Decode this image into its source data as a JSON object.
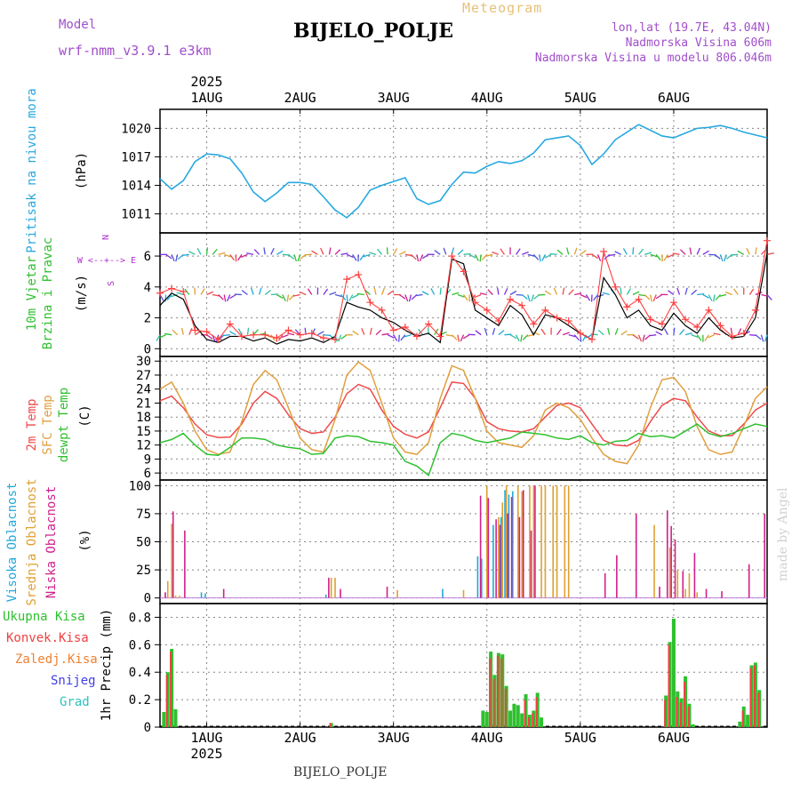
{
  "header": {
    "title": "BIJELO_POLJE",
    "subtitle": "Meteogram",
    "model_label": "Model",
    "model_name": "wrf-nmm_v3.9.1  e3km",
    "lonlat": "lon,lat (19.7E, 43.04N)",
    "elevation": "Nadmorska Visina 606m",
    "model_elevation": "Nadmorska Visina u modelu 806.046m"
  },
  "footer": {
    "station": "BIJELO_POLJE",
    "credit": "made by Angel"
  },
  "colors": {
    "pressure": "#27a9e1",
    "wind_speed": "#000000",
    "wind_gust": "#ff4040",
    "t2m": "#ef4a4a",
    "sfc": "#e0a040",
    "dewpt": "#30c030",
    "cloud_high": "#22a8d8",
    "cloud_mid": "#e0a030",
    "cloud_low": "#d0208a",
    "rain_total": "#2ec02e",
    "rain_conv": "#ef4040",
    "frz": "#f08030",
    "snow": "#4040e0",
    "hail": "#30c0c0",
    "legend_purple": "#b030d0"
  },
  "chart_data": [
    {
      "type": "line",
      "title": "Pritisak na nivou mora",
      "ylabel": "(hPa)",
      "ylim": [
        1009,
        1022
      ],
      "yticks": [
        1011,
        1014,
        1017,
        1020
      ],
      "x_unit": "hours since 2025-07-31 12UTC",
      "series": [
        {
          "name": "pressure",
          "x": [
            0,
            3,
            6,
            9,
            12,
            15,
            18,
            21,
            24,
            27,
            30,
            33,
            36,
            39,
            42,
            45,
            48,
            51,
            54,
            57,
            60,
            63,
            66,
            69,
            72,
            75,
            78,
            81,
            84,
            87,
            90,
            93,
            96,
            99,
            102,
            105,
            108,
            111,
            114,
            117,
            120,
            123,
            126,
            129,
            132,
            135,
            138,
            141,
            144,
            147,
            150,
            153,
            156
          ],
          "values": [
            1014.7,
            1013.6,
            1014.5,
            1016.5,
            1017.3,
            1017.2,
            1016.8,
            1015.3,
            1013.3,
            1012.3,
            1013.2,
            1014.3,
            1014.3,
            1014.1,
            1012.8,
            1011.4,
            1010.6,
            1011.7,
            1013.5,
            1014.0,
            1014.4,
            1014.8,
            1012.6,
            1012.0,
            1012.4,
            1014.1,
            1015.4,
            1015.3,
            1016.0,
            1016.5,
            1016.3,
            1016.6,
            1017.4,
            1018.8,
            1019.0,
            1019.2,
            1018.2,
            1016.2,
            1017.3,
            1018.8,
            1019.6,
            1020.4,
            1019.8,
            1019.2,
            1019.0,
            1019.5,
            1020.0,
            1020.1,
            1020.3,
            1020.0,
            1019.6,
            1019.3,
            1019.0
          ]
        }
      ]
    },
    {
      "type": "line",
      "title": "10m Vjetar Brzina i Pravac",
      "ylabel": "(m/s)",
      "ylim": [
        -0.5,
        7.5
      ],
      "yticks": [
        0,
        2,
        4,
        6
      ],
      "compass_legend": {
        "n": "N",
        "s": "S",
        "w": "W",
        "e": "E",
        "arrows": "<--+-->"
      },
      "series": [
        {
          "name": "wind_speed",
          "x": [
            0,
            3,
            6,
            9,
            12,
            15,
            18,
            21,
            24,
            27,
            30,
            33,
            36,
            39,
            42,
            45,
            48,
            51,
            54,
            57,
            60,
            63,
            66,
            69,
            72,
            75,
            78,
            81,
            84,
            87,
            90,
            93,
            96,
            99,
            102,
            105,
            108,
            111,
            114,
            117,
            120,
            123,
            126,
            129,
            132,
            135,
            138,
            141,
            144,
            147,
            150,
            153,
            156
          ],
          "values": [
            2.8,
            3.6,
            3.2,
            1.5,
            0.6,
            0.4,
            0.8,
            0.8,
            0.5,
            0.7,
            0.3,
            0.6,
            0.5,
            0.7,
            0.4,
            0.8,
            3.0,
            2.7,
            2.5,
            2.0,
            1.7,
            1.2,
            0.8,
            1.0,
            0.4,
            5.8,
            5.5,
            2.5,
            2.0,
            1.5,
            2.8,
            2.2,
            0.9,
            2.2,
            2.0,
            1.5,
            1.0,
            0.6,
            4.6,
            3.5,
            2.0,
            2.5,
            1.5,
            1.2,
            2.3,
            1.5,
            1.0,
            2.0,
            1.2,
            0.7,
            0.8,
            2.0,
            6.2
          ]
        },
        {
          "name": "wind_gust",
          "x": [
            0,
            3,
            6,
            9,
            12,
            15,
            18,
            21,
            24,
            27,
            30,
            33,
            36,
            39,
            42,
            45,
            48,
            51,
            54,
            57,
            60,
            63,
            66,
            69,
            72,
            75,
            78,
            81,
            84,
            87,
            90,
            93,
            96,
            99,
            102,
            105,
            108,
            111,
            114,
            117,
            120,
            123,
            126,
            129,
            132,
            135,
            138,
            141,
            144,
            147,
            150,
            153,
            156
          ],
          "values": [
            3.6,
            3.9,
            3.7,
            1.2,
            1.1,
            0.6,
            1.6,
            0.8,
            0.9,
            0.9,
            0.7,
            1.2,
            0.9,
            1.0,
            0.7,
            0.6,
            4.5,
            4.8,
            3.0,
            2.5,
            1.2,
            1.4,
            0.8,
            1.6,
            0.8,
            6.0,
            5.0,
            3.0,
            2.5,
            1.8,
            3.2,
            2.8,
            1.6,
            2.5,
            2.0,
            1.8,
            1.0,
            0.6,
            6.3,
            4.0,
            2.7,
            3.2,
            1.9,
            1.6,
            3.0,
            1.9,
            1.4,
            2.5,
            1.5,
            0.8,
            1.0,
            2.5,
            7.0
          ]
        }
      ]
    },
    {
      "type": "line",
      "title": "2m Temp / SFC Temp / dewpt Temp",
      "ylabel": "(C)",
      "ylim": [
        4.5,
        31
      ],
      "yticks": [
        6,
        9,
        12,
        15,
        18,
        21,
        24,
        27,
        30
      ],
      "series": [
        {
          "name": "2m Temp",
          "x": [
            0,
            3,
            6,
            9,
            12,
            15,
            18,
            21,
            24,
            27,
            30,
            33,
            36,
            39,
            42,
            45,
            48,
            51,
            54,
            57,
            60,
            63,
            66,
            69,
            72,
            75,
            78,
            81,
            84,
            87,
            90,
            93,
            96,
            99,
            102,
            105,
            108,
            111,
            114,
            117,
            120,
            123,
            126,
            129,
            132,
            135,
            138,
            141,
            144,
            147,
            150,
            153,
            156
          ],
          "values": [
            21.5,
            22.5,
            20.0,
            16.5,
            14.2,
            13.6,
            13.7,
            16.5,
            21.0,
            23.5,
            22.0,
            18.5,
            15.5,
            14.5,
            14.8,
            18.0,
            23.0,
            25.0,
            24.0,
            19.5,
            16.0,
            14.3,
            13.5,
            14.8,
            20.0,
            25.5,
            25.2,
            22.0,
            17.0,
            15.5,
            15.0,
            14.8,
            15.5,
            18.0,
            20.5,
            21.0,
            20.0,
            16.5,
            13.0,
            12.0,
            11.8,
            13.0,
            17.0,
            20.5,
            22.0,
            21.5,
            18.0,
            15.0,
            14.0,
            14.0,
            16.5,
            19.5,
            21.0
          ]
        },
        {
          "name": "SFC Temp",
          "x": [
            0,
            3,
            6,
            9,
            12,
            15,
            18,
            21,
            24,
            27,
            30,
            33,
            36,
            39,
            42,
            45,
            48,
            51,
            54,
            57,
            60,
            63,
            66,
            69,
            72,
            75,
            78,
            81,
            84,
            87,
            90,
            93,
            96,
            99,
            102,
            105,
            108,
            111,
            114,
            117,
            120,
            123,
            126,
            129,
            132,
            135,
            138,
            141,
            144,
            147,
            150,
            153,
            156
          ],
          "values": [
            24.0,
            25.5,
            21.0,
            15.0,
            11.0,
            10.0,
            10.5,
            17.0,
            25.0,
            28.0,
            26.0,
            20.0,
            13.5,
            11.0,
            10.5,
            17.5,
            27.0,
            29.8,
            28.0,
            21.0,
            13.5,
            10.5,
            10.0,
            12.5,
            22.0,
            29.0,
            28.0,
            22.0,
            15.0,
            12.5,
            12.0,
            11.5,
            14.0,
            19.5,
            21.0,
            20.0,
            17.5,
            13.5,
            10.0,
            8.5,
            8.0,
            12.0,
            20.0,
            26.0,
            26.5,
            23.5,
            16.0,
            11.0,
            10.0,
            10.5,
            16.0,
            22.0,
            24.5
          ]
        },
        {
          "name": "dewpt Temp",
          "x": [
            0,
            3,
            6,
            9,
            12,
            15,
            18,
            21,
            24,
            27,
            30,
            33,
            36,
            39,
            42,
            45,
            48,
            51,
            54,
            57,
            60,
            63,
            66,
            69,
            72,
            75,
            78,
            81,
            84,
            87,
            90,
            93,
            96,
            99,
            102,
            105,
            108,
            111,
            114,
            117,
            120,
            123,
            126,
            129,
            132,
            135,
            138,
            141,
            144,
            147,
            150,
            153,
            156
          ],
          "values": [
            12.5,
            13.2,
            14.5,
            12.0,
            10.0,
            9.8,
            11.5,
            13.5,
            13.5,
            13.2,
            12.0,
            11.5,
            11.2,
            10.0,
            10.2,
            13.5,
            14.0,
            13.8,
            12.8,
            12.5,
            12.0,
            8.5,
            7.5,
            5.5,
            12.5,
            14.5,
            14.0,
            13.0,
            12.5,
            13.0,
            13.5,
            14.8,
            14.5,
            14.2,
            13.5,
            13.2,
            14.0,
            12.5,
            12.0,
            12.8,
            13.0,
            14.5,
            13.8,
            14.0,
            13.5,
            15.0,
            16.5,
            14.5,
            13.8,
            14.5,
            15.5,
            16.5,
            16.0
          ]
        }
      ]
    },
    {
      "type": "bar",
      "title": "Visoka Oblacnost / Srednja Oblacnost / Niska Oblacnost",
      "ylabel": "(%)",
      "ylim": [
        -5,
        105
      ],
      "yticks": [
        0,
        25,
        50,
        75,
        100
      ],
      "series": [
        {
          "name": "Visoka",
          "x": [
            11,
            12,
            43,
            73,
            82,
            83,
            86,
            88,
            89,
            90,
            91
          ],
          "values": [
            5,
            4,
            3,
            8,
            37,
            35,
            65,
            72,
            96,
            92,
            95
          ]
        },
        {
          "name": "Srednja",
          "x": [
            2,
            3,
            4,
            5,
            44,
            45,
            61,
            78,
            84,
            87,
            88,
            89,
            92,
            93,
            95,
            96,
            98,
            99,
            101,
            102,
            104,
            105,
            127,
            131,
            133,
            135,
            136,
            138
          ],
          "values": [
            15,
            66,
            2,
            2,
            18,
            18,
            7,
            7,
            100,
            72,
            85,
            100,
            100,
            95,
            100,
            100,
            100,
            100,
            100,
            100,
            100,
            100,
            65,
            45,
            25,
            8,
            22,
            5
          ]
        },
        {
          "name": "Niska",
          "x": [
            1,
            3,
            6,
            16,
            43,
            46,
            58,
            82,
            84,
            86,
            87,
            89,
            90,
            92,
            93,
            95,
            96,
            114,
            117,
            122,
            128,
            130,
            131,
            132,
            134,
            137,
            140,
            144,
            151,
            155
          ],
          "values": [
            5,
            77,
            60,
            8,
            18,
            8,
            10,
            91,
            89,
            70,
            65,
            75,
            90,
            72,
            96,
            60,
            100,
            22,
            38,
            75,
            10,
            78,
            64,
            52,
            24,
            40,
            8,
            6,
            30,
            75
          ]
        }
      ]
    },
    {
      "type": "bar",
      "title": "1hr Precip (mm)",
      "ylabel": "1hr Precip (mm)",
      "ylim": [
        0,
        0.9
      ],
      "yticks": [
        0,
        0.2,
        0.4,
        0.6,
        0.8
      ],
      "legend": [
        "Ukupna  Kisa",
        "Konvek.Kisa",
        "Zaledj.Kisa",
        "Snijeg",
        "Grad"
      ],
      "series": [
        {
          "name": "Ukupna Kisa",
          "x": [
            1,
            2,
            3,
            4,
            44,
            83,
            84,
            85,
            86,
            87,
            88,
            89,
            90,
            91,
            92,
            93,
            94,
            95,
            96,
            97,
            98,
            99,
            100,
            101,
            102,
            103,
            104,
            130,
            131,
            132,
            133,
            134,
            135,
            136,
            137,
            138,
            139,
            140,
            141,
            149,
            150,
            151,
            152,
            153,
            154,
            155,
            156
          ],
          "values": [
            0.11,
            0.4,
            0.57,
            0.13,
            0.03,
            0.12,
            0.11,
            0.55,
            0.38,
            0.54,
            0.53,
            0.3,
            0.12,
            0.17,
            0.16,
            0.1,
            0.24,
            0.09,
            0.12,
            0.25,
            0.07,
            0,
            0,
            0,
            0,
            0,
            0,
            0.23,
            0.62,
            0.79,
            0.26,
            0.21,
            0.37,
            0.17,
            0.02,
            0,
            0,
            0,
            0,
            0.04,
            0.15,
            0.09,
            0.45,
            0.47,
            0.27,
            0,
            0
          ]
        },
        {
          "name": "Konvek.Kisa",
          "x": [
            2,
            3,
            44,
            85,
            86,
            87,
            88,
            89,
            94,
            95,
            96,
            97,
            130,
            131,
            133,
            134,
            135,
            136,
            150,
            152,
            153,
            154
          ],
          "values": [
            0.38,
            0.55,
            0.03,
            0.5,
            0.35,
            0.52,
            0.5,
            0.28,
            0.2,
            0.07,
            0.1,
            0.22,
            0.2,
            0.6,
            0.22,
            0.18,
            0.33,
            0.15,
            0.12,
            0.43,
            0.45,
            0.25
          ]
        }
      ],
      "x_axis": {
        "date_ticks": [
          {
            "hour": 12,
            "label": "1AUG"
          },
          {
            "hour": 36,
            "label": "2AUG"
          },
          {
            "hour": 60,
            "label": "3AUG"
          },
          {
            "hour": 84,
            "label": "4AUG"
          },
          {
            "hour": 108,
            "label": "5AUG"
          },
          {
            "hour": 132,
            "label": "6AUG"
          }
        ],
        "year": "2025"
      }
    }
  ]
}
